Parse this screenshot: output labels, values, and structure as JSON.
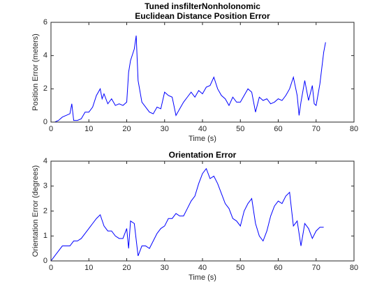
{
  "chart_data": [
    {
      "type": "line",
      "title": [
        "Tuned insfilterNonholonomic",
        "Euclidean Distance Position Error"
      ],
      "x_label": "Time (s)",
      "y_label": "Position Error (meters)",
      "xlim": [
        0,
        80
      ],
      "xticks": [
        0,
        10,
        20,
        30,
        40,
        50,
        60,
        70,
        80
      ],
      "ylim": [
        0,
        6
      ],
      "yticks": [
        0,
        2,
        4,
        6
      ],
      "x": [
        0,
        1,
        2,
        3,
        4,
        5,
        5.5,
        6,
        7,
        8,
        9,
        10,
        11,
        12,
        13,
        13.5,
        14,
        15,
        16,
        17,
        18,
        19,
        20,
        20.5,
        21,
        22,
        22.5,
        23,
        24,
        25,
        26,
        27,
        28,
        29,
        30,
        31,
        32,
        33,
        34,
        35,
        36,
        37,
        38,
        39,
        40,
        41,
        42,
        43,
        44,
        45,
        46,
        47,
        48,
        49,
        50,
        51,
        52,
        53,
        54,
        55,
        56,
        57,
        58,
        59,
        60,
        61,
        62,
        63,
        64,
        65,
        65.5,
        66,
        67,
        68,
        69,
        69.5,
        70,
        71,
        72,
        72.5
      ],
      "series": [
        {
          "color": "#0000ff",
          "values": [
            0,
            0,
            0.1,
            0.3,
            0.4,
            0.5,
            1.1,
            0.1,
            0.1,
            0.2,
            0.6,
            0.6,
            0.9,
            1.6,
            2.0,
            1.4,
            1.7,
            1.1,
            1.4,
            1.0,
            1.1,
            1.0,
            1.2,
            3.0,
            3.7,
            4.4,
            5.2,
            2.5,
            1.2,
            0.9,
            0.6,
            0.5,
            0.9,
            0.8,
            1.8,
            1.6,
            1.5,
            0.4,
            0.8,
            1.2,
            1.5,
            1.8,
            1.5,
            1.9,
            1.7,
            2.1,
            2.2,
            2.7,
            2.0,
            1.6,
            1.4,
            1.0,
            1.5,
            1.2,
            1.2,
            1.6,
            2.0,
            1.8,
            0.6,
            1.5,
            1.3,
            1.4,
            1.1,
            1.2,
            1.4,
            1.3,
            1.6,
            2.0,
            2.7,
            1.6,
            0.4,
            1.2,
            2.5,
            1.3,
            2.2,
            1.1,
            1.0,
            2.3,
            4.2,
            4.8
          ]
        }
      ]
    },
    {
      "type": "line",
      "title": [
        "Orientation Error"
      ],
      "x_label": "Time (s)",
      "y_label": "Orientation Error (degrees)",
      "xlim": [
        0,
        80
      ],
      "xticks": [
        0,
        10,
        20,
        30,
        40,
        50,
        60,
        70,
        80
      ],
      "ylim": [
        0,
        4
      ],
      "yticks": [
        0,
        1,
        2,
        3,
        4
      ],
      "x": [
        0,
        1,
        2,
        3,
        4,
        5,
        6,
        7,
        8,
        9,
        10,
        11,
        12,
        13,
        14,
        15,
        16,
        17,
        18,
        19,
        20,
        20.5,
        21,
        22,
        23,
        24,
        25,
        26,
        27,
        28,
        29,
        30,
        31,
        32,
        33,
        34,
        35,
        36,
        37,
        38,
        39,
        40,
        41,
        42,
        43,
        44,
        45,
        46,
        47,
        48,
        49,
        50,
        51,
        52,
        53,
        54,
        55,
        56,
        57,
        58,
        59,
        60,
        61,
        62,
        63,
        64,
        65,
        66,
        67,
        68,
        69,
        70,
        71,
        72
      ],
      "series": [
        {
          "color": "#0000ff",
          "values": [
            0,
            0.2,
            0.4,
            0.6,
            0.6,
            0.6,
            0.8,
            0.8,
            0.9,
            1.1,
            1.3,
            1.5,
            1.7,
            1.85,
            1.4,
            1.2,
            1.2,
            1.0,
            0.9,
            0.9,
            1.3,
            0.5,
            1.6,
            1.5,
            0.2,
            0.6,
            0.6,
            0.5,
            0.8,
            1.1,
            1.3,
            1.4,
            1.7,
            1.7,
            1.9,
            1.8,
            1.8,
            2.1,
            2.4,
            2.6,
            3.1,
            3.5,
            3.7,
            3.3,
            3.4,
            3.1,
            2.7,
            2.3,
            2.1,
            1.7,
            1.6,
            1.4,
            2.0,
            2.3,
            2.5,
            1.5,
            1.0,
            0.8,
            1.2,
            1.8,
            2.2,
            2.4,
            2.3,
            2.6,
            2.75,
            1.4,
            1.6,
            0.6,
            1.5,
            1.3,
            0.9,
            1.2,
            1.35,
            1.35
          ]
        }
      ]
    }
  ]
}
